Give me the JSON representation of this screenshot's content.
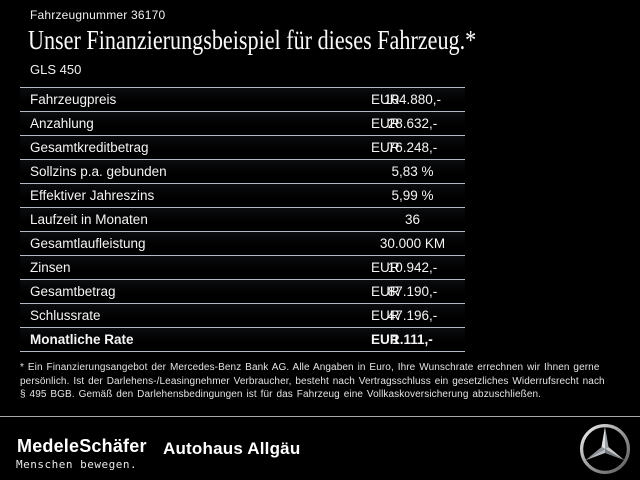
{
  "header": {
    "vehicle_number": "Fahrzeugnummer 36170",
    "title": "Unser Finanzierungsbeispiel für dieses Fahrzeug.*",
    "model": "GLS 450"
  },
  "table": {
    "rows": [
      {
        "label": "Fahrzeugpreis",
        "currency": "EUR",
        "value": "104.880,-",
        "bold": false
      },
      {
        "label": "Anzahlung",
        "currency": "EUR",
        "value": "28.632,-",
        "bold": false
      },
      {
        "label": "Gesamtkreditbetrag",
        "currency": "EUR",
        "value": "76.248,-",
        "bold": false
      },
      {
        "label": "Sollzins p.a. gebunden",
        "currency": "",
        "value": "5,83 %",
        "bold": false
      },
      {
        "label": "Effektiver Jahreszins",
        "currency": "",
        "value": "5,99 %",
        "bold": false
      },
      {
        "label": "Laufzeit in Monaten",
        "currency": "",
        "value": "36",
        "bold": false
      },
      {
        "label": "Gesamtlaufleistung",
        "currency": "",
        "value": "30.000 KM",
        "bold": false
      },
      {
        "label": "Zinsen",
        "currency": "EUR",
        "value": "10.942,-",
        "bold": false
      },
      {
        "label": "Gesamtbetrag",
        "currency": "EUR",
        "value": "87.190,-",
        "bold": false
      },
      {
        "label": "Schlussrate",
        "currency": "EUR",
        "value": "47.196,-",
        "bold": false
      },
      {
        "label": "Monatliche Rate",
        "currency": "EUR",
        "value": "1.111,-",
        "bold": true
      }
    ]
  },
  "footnote": {
    "lines": [
      "* Ein Finanzierungsangebot der Mercedes-Benz Bank AG. Alle Angaben in Euro, Ihre Wunschrate errechnen wir Ihnen gerne",
      "persönlich. Ist der Darlehens-/Leasingnehmer Verbraucher, besteht nach Vertragsschluss ein gesetzliches Widerrufsrecht nach",
      "§ 495 BGB. Gemäß den Darlehensbedingungen ist für das Fahrzeug eine Vollkaskoversicherung abzuschließen."
    ]
  },
  "footer": {
    "dealer_logo": "MedeleSchäfer",
    "dealer_tagline": "Menschen bewegen.",
    "dealer_name_secondary": "Autohaus Allgäu",
    "brand_icon": "mercedes-star"
  },
  "colors": {
    "background": "#000000",
    "text": "#f5f5f5",
    "table_line": "#b5bcc8",
    "footer_line": "#a8a8a8",
    "star_silver": "#c7c7c7"
  }
}
